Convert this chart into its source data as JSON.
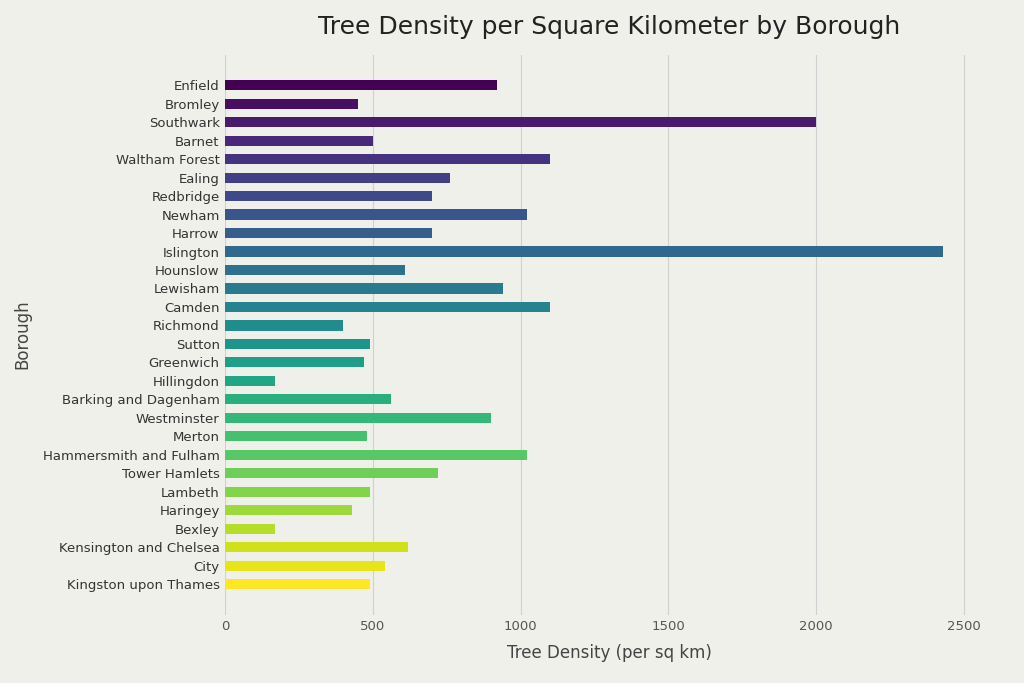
{
  "title": "Tree Density per Square Kilometer by Borough",
  "xlabel": "Tree Density (per sq km)",
  "ylabel": "Borough",
  "boroughs": [
    "Enfield",
    "Bromley",
    "Southwark",
    "Barnet",
    "Waltham Forest",
    "Ealing",
    "Redbridge",
    "Newham",
    "Harrow",
    "Islington",
    "Hounslow",
    "Lewisham",
    "Camden",
    "Richmond",
    "Sutton",
    "Greenwich",
    "Hillingdon",
    "Barking and Dagenham",
    "Westminster",
    "Merton",
    "Hammersmith and Fulham",
    "Tower Hamlets",
    "Lambeth",
    "Haringey",
    "Bexley",
    "Kensington and Chelsea",
    "City",
    "Kingston upon Thames"
  ],
  "values": [
    920,
    450,
    2000,
    500,
    1100,
    760,
    700,
    1020,
    700,
    2430,
    610,
    940,
    1100,
    400,
    490,
    470,
    170,
    560,
    900,
    480,
    1020,
    720,
    490,
    430,
    170,
    620,
    540,
    490
  ],
  "background_color": "#f0f0eb",
  "bar_edge_color": "none",
  "title_fontsize": 18,
  "axis_label_fontsize": 12,
  "tick_fontsize": 9.5,
  "xlim": [
    0,
    2600
  ],
  "bar_height": 0.55,
  "grid_color": "#d0d0d0",
  "colormap": "viridis"
}
